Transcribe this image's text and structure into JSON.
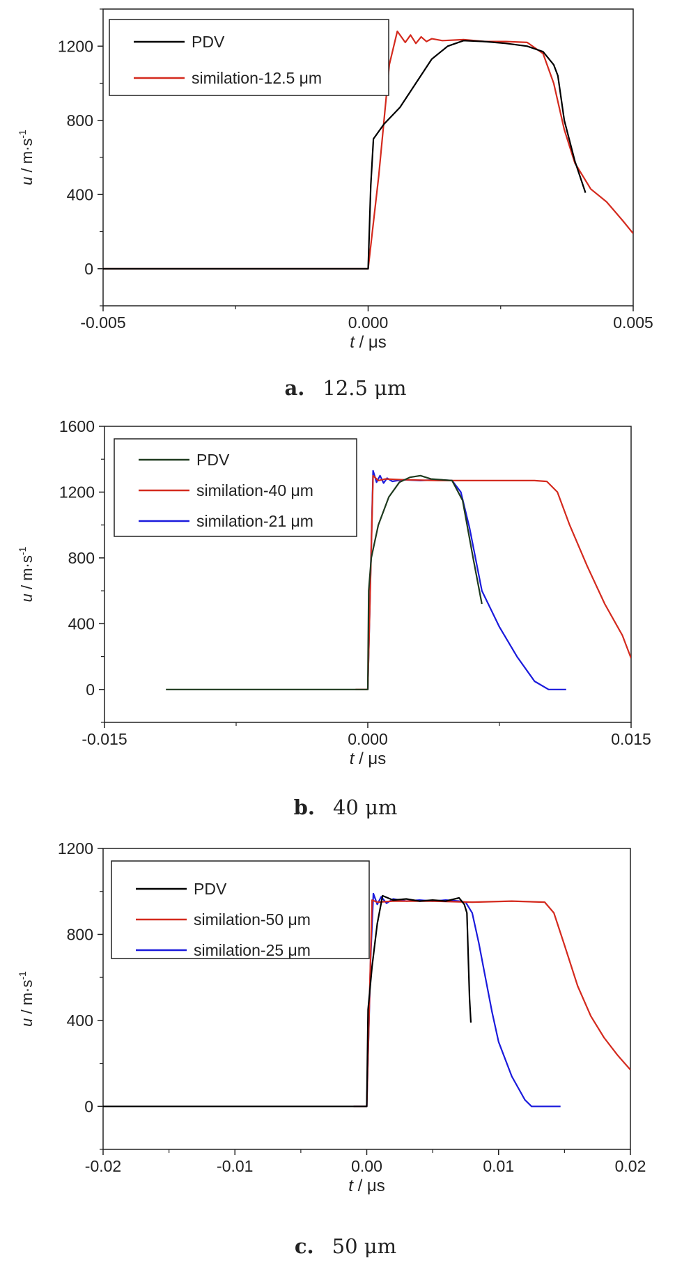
{
  "chart_data": [
    {
      "type": "line",
      "caption_label": "a.",
      "caption_text": "12.5 μm",
      "xlabel_var": "t",
      "xlabel_unit": " / μs",
      "ylabel_var": "u",
      "ylabel_unit": " / m·s",
      "ylabel_sup": "-1",
      "xlim": [
        -0.005,
        0.005
      ],
      "ylim": [
        -200,
        1400
      ],
      "xticks": [
        -0.005,
        0.0,
        0.005
      ],
      "xtick_labels": [
        "-0.005",
        "0.000",
        "0.005"
      ],
      "yticks": [
        0,
        400,
        800,
        1200
      ],
      "ytick_labels": [
        "0",
        "400",
        "800",
        "1200"
      ],
      "legend_position": "top-left",
      "grid": false,
      "series": [
        {
          "name": "PDV",
          "color": "#000000",
          "x": [
            -0.005,
            -0.0001,
            0.0,
            5e-05,
            0.0001,
            0.0003,
            0.0006,
            0.0009,
            0.0012,
            0.0015,
            0.0018,
            0.0022,
            0.0026,
            0.003,
            0.0033,
            0.0035,
            0.00358,
            0.0037,
            0.0039,
            0.0041
          ],
          "y": [
            0,
            0,
            0,
            450,
            700,
            780,
            870,
            1000,
            1130,
            1200,
            1230,
            1225,
            1215,
            1200,
            1170,
            1100,
            1040,
            800,
            580,
            410
          ]
        },
        {
          "name": "similation-12.5 μm",
          "color": "#d42a1e",
          "x": [
            -0.005,
            -0.0001,
            0.0,
            0.0002,
            0.0004,
            0.00055,
            0.0007,
            0.0008,
            0.0009,
            0.001,
            0.0011,
            0.0012,
            0.0014,
            0.0018,
            0.0022,
            0.0026,
            0.003,
            0.0033,
            0.0035,
            0.0037,
            0.0039,
            0.0042,
            0.0045,
            0.0048,
            0.005
          ],
          "y": [
            0,
            0,
            0,
            500,
            1100,
            1280,
            1220,
            1260,
            1215,
            1250,
            1225,
            1240,
            1230,
            1235,
            1225,
            1225,
            1220,
            1160,
            1000,
            750,
            570,
            430,
            360,
            260,
            190
          ]
        }
      ]
    },
    {
      "type": "line",
      "caption_label": "b.",
      "caption_text": "40 μm",
      "xlabel_var": "t",
      "xlabel_unit": " / μs",
      "ylabel_var": "u",
      "ylabel_unit": " / m·s",
      "ylabel_sup": "-1",
      "xlim": [
        -0.015,
        0.015
      ],
      "ylim": [
        -200,
        1600
      ],
      "xticks": [
        -0.015,
        0.0,
        0.015
      ],
      "xtick_labels": [
        "-0.015",
        "0.000",
        "0.015"
      ],
      "yticks": [
        0,
        400,
        800,
        1200,
        1600
      ],
      "ytick_labels": [
        "0",
        "400",
        "800",
        "1200",
        "1600"
      ],
      "legend_position": "top-left",
      "grid": false,
      "series": [
        {
          "name": "PDV",
          "color": "#1e3a1e",
          "x": [
            -0.0115,
            0.0,
            5e-05,
            0.0002,
            0.0006,
            0.0012,
            0.0018,
            0.0024,
            0.003,
            0.0036,
            0.0042,
            0.0048,
            0.0054,
            0.006,
            0.0065
          ],
          "y": [
            0,
            0,
            600,
            800,
            1000,
            1170,
            1260,
            1290,
            1300,
            1280,
            1275,
            1270,
            1150,
            800,
            520
          ]
        },
        {
          "name": "similation-40 μm",
          "color": "#d42a1e",
          "x": [
            -0.0007,
            0.0,
            0.0003,
            0.0006,
            0.001,
            0.002,
            0.004,
            0.006,
            0.008,
            0.0095,
            0.0102,
            0.0108,
            0.0115,
            0.0125,
            0.0135,
            0.0145,
            0.015
          ],
          "y": [
            0,
            0,
            1300,
            1270,
            1280,
            1275,
            1270,
            1270,
            1270,
            1270,
            1265,
            1200,
            1000,
            750,
            520,
            330,
            190
          ]
        },
        {
          "name": "similation-21 μm",
          "color": "#1a1adc",
          "x": [
            0.0,
            0.0003,
            0.0005,
            0.0007,
            0.0009,
            0.0011,
            0.0014,
            0.002,
            0.003,
            0.004,
            0.0048,
            0.0053,
            0.0058,
            0.0065,
            0.0075,
            0.0085,
            0.0095,
            0.0103,
            0.0107,
            0.0113
          ],
          "y": [
            0,
            1330,
            1260,
            1300,
            1255,
            1285,
            1265,
            1275,
            1270,
            1275,
            1270,
            1200,
            980,
            600,
            380,
            200,
            50,
            0,
            0,
            0
          ]
        }
      ]
    },
    {
      "type": "line",
      "caption_label": "c.",
      "caption_text": "50 μm",
      "xlabel_var": "t",
      "xlabel_unit": " / μs",
      "ylabel_var": "u",
      "ylabel_unit": " / m·s",
      "ylabel_sup": "-1",
      "xlim": [
        -0.02,
        0.02
      ],
      "ylim": [
        -200,
        1200
      ],
      "xticks": [
        -0.02,
        -0.01,
        0.0,
        0.01,
        0.02
      ],
      "xtick_labels": [
        "-0.02",
        "-0.01",
        "0.00",
        "0.01",
        "0.02"
      ],
      "yticks": [
        0,
        400,
        800,
        1200
      ],
      "ytick_labels": [
        "0",
        "400",
        "800",
        "1200"
      ],
      "legend_position": "top-left",
      "grid": false,
      "series": [
        {
          "name": "PDV",
          "color": "#000000",
          "x": [
            -0.02,
            0.0,
            0.0001,
            0.0004,
            0.0008,
            0.0012,
            0.002,
            0.003,
            0.004,
            0.005,
            0.006,
            0.007,
            0.0074,
            0.0076,
            0.0078,
            0.0079
          ],
          "y": [
            0,
            0,
            450,
            650,
            850,
            980,
            960,
            965,
            955,
            960,
            955,
            970,
            940,
            900,
            500,
            390
          ]
        },
        {
          "name": "similation-50 μm",
          "color": "#d42a1e",
          "x": [
            -0.001,
            0.0,
            0.0004,
            0.0008,
            0.002,
            0.005,
            0.008,
            0.011,
            0.0135,
            0.0142,
            0.015,
            0.016,
            0.017,
            0.018,
            0.019,
            0.02
          ],
          "y": [
            0,
            0,
            960,
            950,
            955,
            955,
            950,
            955,
            950,
            900,
            750,
            560,
            420,
            320,
            240,
            170
          ]
        },
        {
          "name": "similation-25 μm",
          "color": "#1a1adc",
          "x": [
            -0.001,
            0.0,
            0.0003,
            0.0005,
            0.0008,
            0.0011,
            0.0015,
            0.002,
            0.003,
            0.004,
            0.005,
            0.006,
            0.007,
            0.0075,
            0.008,
            0.0085,
            0.009,
            0.0095,
            0.01,
            0.011,
            0.012,
            0.0125,
            0.013,
            0.0147
          ],
          "y": [
            0,
            0,
            700,
            990,
            940,
            975,
            945,
            965,
            955,
            960,
            955,
            960,
            955,
            950,
            900,
            760,
            600,
            440,
            300,
            140,
            30,
            0,
            0,
            0
          ]
        }
      ]
    }
  ]
}
